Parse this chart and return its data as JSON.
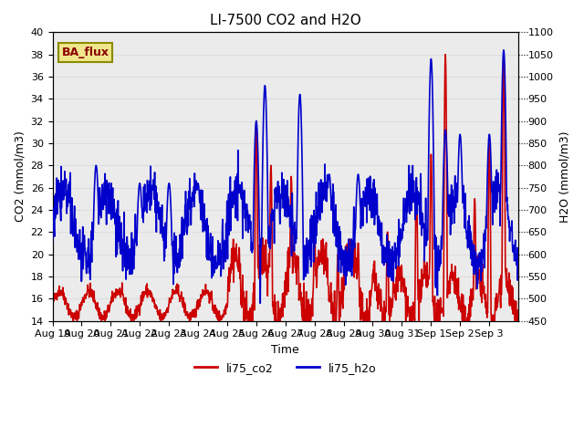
{
  "title": "LI-7500 CO2 and H2O",
  "xlabel": "Time",
  "ylabel_left": "CO2 (mmol/m3)",
  "ylabel_right": "H2O (mmol/m3)",
  "co2_color": "#cc0000",
  "h2o_color": "#0000cc",
  "ylim_left": [
    14,
    40
  ],
  "ylim_right": [
    450,
    1100
  ],
  "yticks_left": [
    14,
    16,
    18,
    20,
    22,
    24,
    26,
    28,
    30,
    32,
    34,
    36,
    38,
    40
  ],
  "yticks_right": [
    450,
    500,
    550,
    600,
    650,
    700,
    750,
    800,
    850,
    900,
    950,
    1000,
    1050,
    1100
  ],
  "xtick_labels": [
    "Aug 19",
    "Aug 20",
    "Aug 21",
    "Aug 22",
    "Aug 23",
    "Aug 24",
    "Aug 25",
    "Aug 26",
    "Aug 27",
    "Aug 28",
    "Aug 29",
    "Aug 30",
    "Aug 31",
    "Sep 1",
    "Sep 2",
    "Sep 3"
  ],
  "legend_labels": [
    "li75_co2",
    "li75_h2o"
  ],
  "annotation_text": "BA_flux",
  "bg_color": "#ffffff",
  "grid_color": "#dddddd",
  "line_width": 1.2,
  "num_points": 1400
}
